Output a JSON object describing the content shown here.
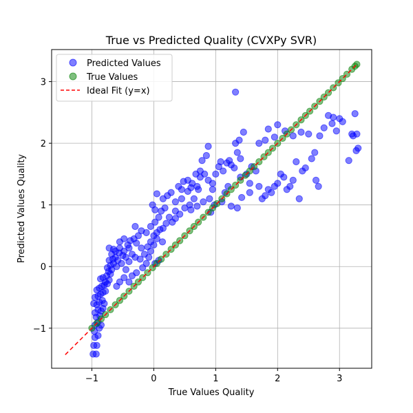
{
  "chart_data": {
    "type": "scatter",
    "title": "True vs Predicted Quality (CVXPy SVR)",
    "xlabel": "True Values Quality",
    "ylabel": "Predicted Values Quality",
    "xlim": [
      -1.65,
      3.52
    ],
    "ylim": [
      -1.65,
      3.52
    ],
    "xticks": [
      -1,
      0,
      1,
      2,
      3
    ],
    "yticks": [
      -1,
      0,
      1,
      2,
      3
    ],
    "grid": true,
    "legend_position": "top-left",
    "series": [
      {
        "name": "Predicted Values",
        "color": "#0000ff",
        "marker": "circle",
        "points": [
          [
            -0.98,
            -1.42
          ],
          [
            -0.93,
            -1.42
          ],
          [
            -0.97,
            -1.28
          ],
          [
            -0.92,
            -1.28
          ],
          [
            -0.95,
            -1.15
          ],
          [
            -0.9,
            -1.12
          ],
          [
            -0.96,
            -1.05
          ],
          [
            -0.88,
            -1.0
          ],
          [
            -0.95,
            -0.95
          ],
          [
            -0.9,
            -0.9
          ],
          [
            -0.85,
            -0.95
          ],
          [
            -0.93,
            -0.82
          ],
          [
            -0.87,
            -0.8
          ],
          [
            -0.95,
            -0.75
          ],
          [
            -0.9,
            -0.7
          ],
          [
            -0.85,
            -0.72
          ],
          [
            -0.82,
            -0.68
          ],
          [
            -0.97,
            -0.6
          ],
          [
            -0.92,
            -0.62
          ],
          [
            -0.88,
            -0.58
          ],
          [
            -0.83,
            -0.55
          ],
          [
            -0.8,
            -0.6
          ],
          [
            -0.95,
            -0.5
          ],
          [
            -0.9,
            -0.48
          ],
          [
            -0.86,
            -0.45
          ],
          [
            -0.82,
            -0.42
          ],
          [
            -0.78,
            -0.4
          ],
          [
            -0.92,
            -0.38
          ],
          [
            -0.88,
            -0.35
          ],
          [
            -0.84,
            -0.32
          ],
          [
            -0.8,
            -0.3
          ],
          [
            -0.75,
            -0.28
          ],
          [
            -0.78,
            -0.25
          ],
          [
            -0.72,
            -0.22
          ],
          [
            -0.86,
            -0.2
          ],
          [
            -0.82,
            -0.18
          ],
          [
            -0.76,
            -0.15
          ],
          [
            -0.7,
            -0.12
          ],
          [
            -0.73,
            -0.08
          ],
          [
            -0.68,
            -0.05
          ],
          [
            -0.75,
            -0.02
          ],
          [
            -0.7,
            0.02
          ],
          [
            -0.65,
            0.05
          ],
          [
            -0.6,
            0.0
          ],
          [
            -0.72,
            0.1
          ],
          [
            -0.66,
            0.12
          ],
          [
            -0.62,
            0.15
          ],
          [
            -0.58,
            0.1
          ],
          [
            -0.68,
            0.2
          ],
          [
            -0.62,
            0.25
          ],
          [
            -0.56,
            0.22
          ],
          [
            -0.5,
            0.18
          ],
          [
            -0.72,
            0.3
          ],
          [
            -0.65,
            0.28
          ],
          [
            -0.55,
            0.3
          ],
          [
            -0.48,
            0.25
          ],
          [
            -0.45,
            0.15
          ],
          [
            -0.52,
            0.05
          ],
          [
            -0.45,
            -0.05
          ],
          [
            -0.4,
            0.08
          ],
          [
            -0.42,
            0.35
          ],
          [
            -0.38,
            0.42
          ],
          [
            -0.32,
            0.45
          ],
          [
            -0.28,
            0.38
          ],
          [
            -0.25,
            0.5
          ],
          [
            -0.2,
            0.3
          ],
          [
            -0.35,
            0.2
          ],
          [
            -0.3,
            0.15
          ],
          [
            -0.22,
            0.12
          ],
          [
            -0.15,
            0.2
          ],
          [
            -0.1,
            0.32
          ],
          [
            -0.05,
            0.4
          ],
          [
            0.0,
            0.5
          ],
          [
            0.05,
            0.55
          ],
          [
            -0.12,
            0.55
          ],
          [
            -0.2,
            0.58
          ],
          [
            -0.3,
            0.65
          ],
          [
            -0.05,
            0.65
          ],
          [
            0.02,
            0.72
          ],
          [
            0.08,
            0.8
          ],
          [
            0.12,
            0.9
          ],
          [
            0.18,
            0.95
          ],
          [
            0.02,
            0.92
          ],
          [
            -0.02,
            1.0
          ],
          [
            0.05,
            1.18
          ],
          [
            0.15,
            1.1
          ],
          [
            0.22,
            1.15
          ],
          [
            0.28,
            1.2
          ],
          [
            0.35,
            1.05
          ],
          [
            0.4,
            1.3
          ],
          [
            0.45,
            1.25
          ],
          [
            0.48,
            1.38
          ],
          [
            0.55,
            1.4
          ],
          [
            0.62,
            1.35
          ],
          [
            0.68,
            1.5
          ],
          [
            0.75,
            1.55
          ],
          [
            0.78,
            1.72
          ],
          [
            0.85,
            1.8
          ],
          [
            0.88,
            1.95
          ],
          [
            0.72,
            1.25
          ],
          [
            0.65,
            1.1
          ],
          [
            0.58,
            1.0
          ],
          [
            0.5,
            0.95
          ],
          [
            0.42,
            0.85
          ],
          [
            0.35,
            0.78
          ],
          [
            0.3,
            0.72
          ],
          [
            0.25,
            0.8
          ],
          [
            0.2,
            0.7
          ],
          [
            0.15,
            0.62
          ],
          [
            0.1,
            0.6
          ],
          [
            0.05,
            0.45
          ],
          [
            0.0,
            0.35
          ],
          [
            -0.05,
            0.25
          ],
          [
            -0.08,
            0.15
          ],
          [
            0.02,
            0.05
          ],
          [
            0.08,
            0.1
          ],
          [
            0.14,
            0.4
          ],
          [
            0.6,
            0.92
          ],
          [
            0.7,
            0.98
          ],
          [
            0.8,
            1.05
          ],
          [
            0.9,
            1.1
          ],
          [
            0.95,
            1.25
          ],
          [
            1.0,
            1.5
          ],
          [
            1.05,
            1.62
          ],
          [
            1.08,
            1.7
          ],
          [
            1.12,
            1.55
          ],
          [
            1.18,
            1.68
          ],
          [
            1.22,
            1.72
          ],
          [
            1.25,
            1.65
          ],
          [
            1.3,
            1.6
          ],
          [
            1.35,
            1.85
          ],
          [
            1.32,
            2.0
          ],
          [
            1.38,
            2.05
          ],
          [
            1.32,
            2.83
          ],
          [
            1.45,
            2.18
          ],
          [
            1.5,
            1.5
          ],
          [
            1.55,
            1.35
          ],
          [
            1.4,
            1.45
          ],
          [
            1.2,
            1.3
          ],
          [
            1.15,
            1.2
          ],
          [
            1.1,
            1.05
          ],
          [
            1.25,
            0.98
          ],
          [
            1.35,
            0.95
          ],
          [
            1.42,
            1.12
          ],
          [
            1.55,
            1.2
          ],
          [
            1.65,
            1.55
          ],
          [
            1.7,
            1.3
          ],
          [
            1.75,
            1.1
          ],
          [
            1.8,
            1.15
          ],
          [
            1.85,
            1.25
          ],
          [
            1.9,
            1.2
          ],
          [
            1.95,
            1.3
          ],
          [
            2.0,
            1.35
          ],
          [
            2.1,
            1.45
          ],
          [
            2.05,
            1.5
          ],
          [
            2.15,
            1.25
          ],
          [
            2.2,
            1.3
          ],
          [
            2.25,
            1.4
          ],
          [
            2.3,
            1.7
          ],
          [
            2.35,
            1.1
          ],
          [
            2.4,
            1.55
          ],
          [
            2.45,
            1.6
          ],
          [
            2.55,
            1.75
          ],
          [
            2.6,
            1.85
          ],
          [
            2.62,
            1.4
          ],
          [
            2.66,
            1.3
          ],
          [
            2.75,
            2.25
          ],
          [
            2.82,
            2.45
          ],
          [
            2.9,
            2.42
          ],
          [
            3.0,
            2.4
          ],
          [
            3.05,
            2.35
          ],
          [
            3.15,
            1.72
          ],
          [
            3.2,
            2.15
          ],
          [
            3.25,
            2.48
          ],
          [
            3.22,
            2.12
          ],
          [
            3.28,
            2.15
          ],
          [
            3.3,
            1.92
          ],
          [
            3.27,
            1.88
          ],
          [
            1.7,
            2.0
          ],
          [
            1.8,
            2.05
          ],
          [
            1.85,
            2.23
          ],
          [
            1.95,
            2.1
          ],
          [
            2.0,
            2.3
          ],
          [
            2.12,
            2.2
          ],
          [
            2.25,
            2.12
          ],
          [
            2.38,
            2.18
          ],
          [
            2.5,
            2.15
          ],
          [
            2.68,
            2.12
          ],
          [
            2.88,
            2.32
          ],
          [
            2.95,
            2.2
          ],
          [
            0.92,
            0.88
          ],
          [
            0.98,
            1.0
          ],
          [
            1.4,
            1.75
          ],
          [
            1.58,
            1.62
          ],
          [
            -0.6,
            -0.32
          ],
          [
            -0.55,
            -0.25
          ],
          [
            -0.48,
            -0.18
          ],
          [
            -0.4,
            -0.25
          ],
          [
            -0.35,
            -0.15
          ],
          [
            -0.28,
            -0.1
          ],
          [
            -0.18,
            -0.02
          ],
          [
            -0.12,
            0.05
          ],
          [
            -0.55,
            0.4
          ],
          [
            -0.48,
            0.45
          ],
          [
            -0.4,
            0.3
          ],
          [
            0.35,
            0.9
          ],
          [
            0.45,
            1.1
          ],
          [
            0.55,
            1.22
          ],
          [
            0.6,
            1.28
          ],
          [
            0.7,
            1.3
          ],
          [
            0.75,
            1.45
          ],
          [
            0.82,
            1.5
          ],
          [
            0.88,
            1.4
          ],
          [
            0.95,
            1.35
          ]
        ]
      },
      {
        "name": "True Values",
        "color": "#008000",
        "marker": "circle",
        "points": [
          [
            -1.0,
            -1.0
          ],
          [
            -0.92,
            -0.92
          ],
          [
            -0.85,
            -0.85
          ],
          [
            -0.78,
            -0.78
          ],
          [
            -0.7,
            -0.7
          ],
          [
            -0.62,
            -0.62
          ],
          [
            -0.55,
            -0.55
          ],
          [
            -0.48,
            -0.48
          ],
          [
            -0.4,
            -0.4
          ],
          [
            -0.32,
            -0.32
          ],
          [
            -0.25,
            -0.25
          ],
          [
            -0.18,
            -0.18
          ],
          [
            -0.1,
            -0.1
          ],
          [
            -0.02,
            -0.02
          ],
          [
            0.05,
            0.05
          ],
          [
            0.12,
            0.12
          ],
          [
            0.2,
            0.2
          ],
          [
            0.28,
            0.28
          ],
          [
            0.35,
            0.35
          ],
          [
            0.42,
            0.42
          ],
          [
            0.5,
            0.5
          ],
          [
            0.58,
            0.58
          ],
          [
            0.65,
            0.65
          ],
          [
            0.72,
            0.72
          ],
          [
            0.8,
            0.8
          ],
          [
            0.88,
            0.88
          ],
          [
            0.95,
            0.95
          ],
          [
            1.02,
            1.02
          ],
          [
            1.1,
            1.1
          ],
          [
            1.18,
            1.18
          ],
          [
            1.25,
            1.25
          ],
          [
            1.32,
            1.32
          ],
          [
            1.4,
            1.4
          ],
          [
            1.48,
            1.48
          ],
          [
            1.55,
            1.55
          ],
          [
            1.62,
            1.62
          ],
          [
            1.7,
            1.7
          ],
          [
            1.78,
            1.78
          ],
          [
            1.85,
            1.85
          ],
          [
            1.92,
            1.92
          ],
          [
            2.0,
            2.0
          ],
          [
            2.08,
            2.08
          ],
          [
            2.15,
            2.15
          ],
          [
            2.22,
            2.22
          ],
          [
            2.3,
            2.3
          ],
          [
            2.38,
            2.38
          ],
          [
            2.45,
            2.45
          ],
          [
            2.52,
            2.52
          ],
          [
            2.6,
            2.6
          ],
          [
            2.68,
            2.68
          ],
          [
            2.75,
            2.75
          ],
          [
            2.82,
            2.82
          ],
          [
            2.9,
            2.9
          ],
          [
            2.98,
            2.98
          ],
          [
            3.05,
            3.05
          ],
          [
            3.12,
            3.12
          ],
          [
            3.2,
            3.2
          ],
          [
            3.25,
            3.25
          ],
          [
            3.28,
            3.28
          ]
        ]
      }
    ],
    "reference_line": {
      "name": "Ideal Fit (y=x)",
      "color": "#ff0000",
      "style": "dashed",
      "from": [
        -1.43,
        -1.43
      ],
      "to": [
        3.28,
        3.28
      ]
    }
  }
}
